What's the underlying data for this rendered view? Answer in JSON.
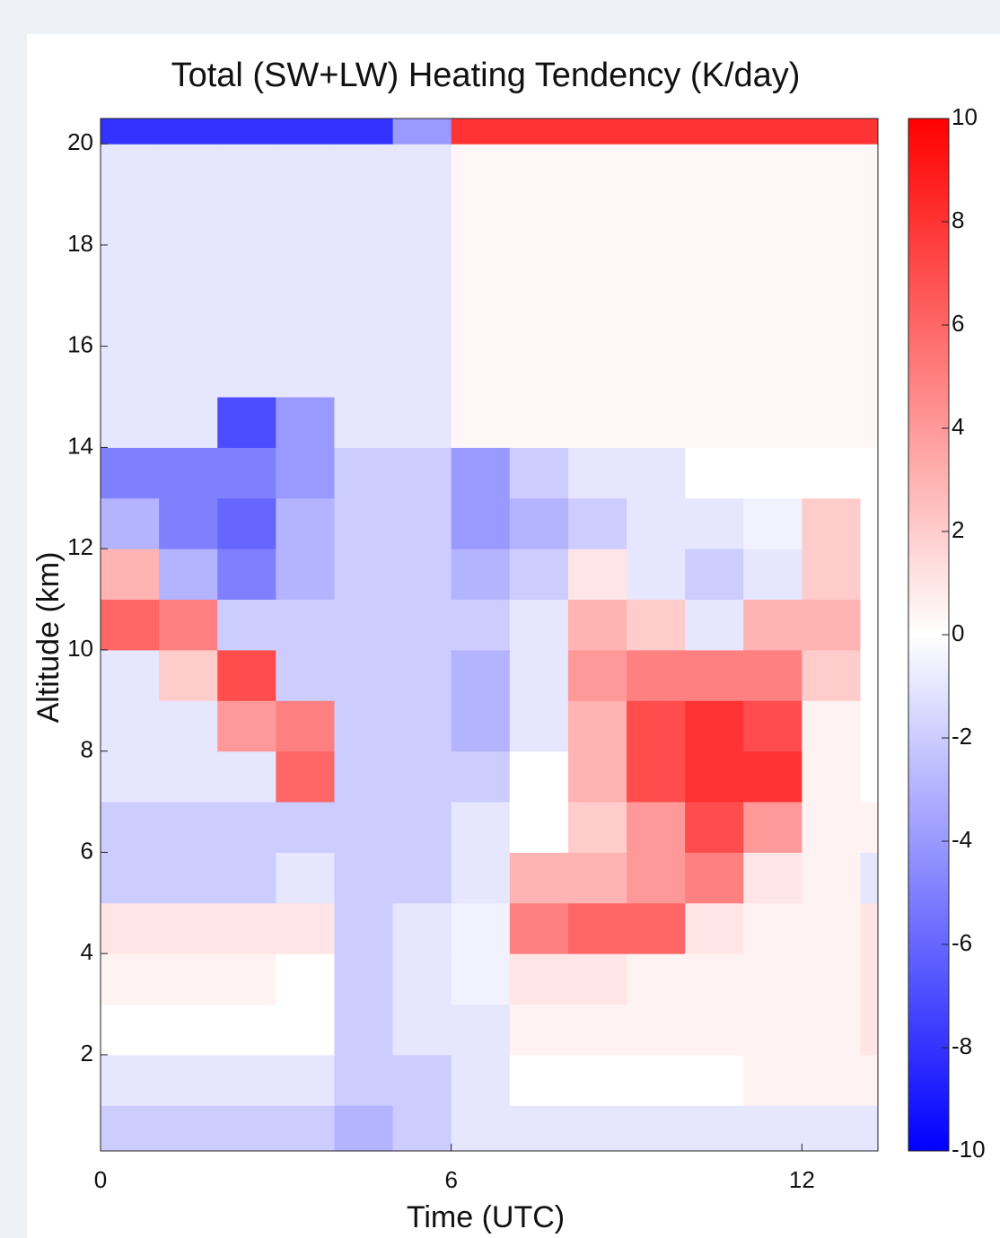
{
  "chart_data": {
    "type": "heatmap",
    "title": "Total (SW+LW) Heating Tendency (K/day)",
    "x_label": "Time (UTC)",
    "y_label": "Altitude (km)",
    "x": [
      0,
      1,
      2,
      3,
      4,
      5,
      6,
      7,
      8,
      9,
      10,
      11,
      12,
      13,
      13.3
    ],
    "y": [
      0.1,
      1,
      2,
      3,
      4,
      5,
      6,
      7,
      8,
      9,
      10,
      11,
      12,
      13,
      14,
      15,
      16,
      17,
      18,
      19,
      20,
      20.5
    ],
    "z": [
      [
        -2,
        -2,
        -2,
        -2,
        -3,
        -2,
        -1,
        -1,
        -1,
        -1,
        -1,
        -1,
        -1,
        -1
      ],
      [
        -1,
        -1,
        -1,
        -1,
        -2,
        -2,
        -1,
        0,
        0,
        0,
        0,
        0.5,
        0.5,
        0.5
      ],
      [
        0,
        0,
        0,
        0,
        -2,
        -1,
        -1,
        0.5,
        0.5,
        0.5,
        0.5,
        0.5,
        0.5,
        1
      ],
      [
        0.5,
        0.5,
        0.5,
        0,
        -2,
        -1,
        -0.5,
        1,
        1,
        0.5,
        0.5,
        0.5,
        0.5,
        1
      ],
      [
        1,
        1,
        1,
        1,
        -2,
        -1,
        -0.5,
        5,
        6,
        6,
        1,
        0.5,
        0.5,
        1
      ],
      [
        -2,
        -2,
        -2,
        -1,
        -2,
        -2,
        -1,
        3,
        3,
        4,
        5,
        1,
        0.5,
        -1
      ],
      [
        -2,
        -2,
        -2,
        -2,
        -2,
        -2,
        -1,
        0,
        2,
        4,
        7,
        4,
        0.5,
        0.5
      ],
      [
        -1,
        -1,
        -1,
        6,
        -2,
        -2,
        -2,
        0,
        3,
        7,
        8,
        8,
        0.5,
        0
      ],
      [
        -1,
        -1,
        4,
        5,
        -2,
        -2,
        -3,
        -1,
        3,
        7,
        8,
        7,
        0.5,
        0
      ],
      [
        -1,
        2,
        7,
        -2,
        -2,
        -2,
        -3,
        -1,
        4,
        5,
        5,
        5,
        2,
        0
      ],
      [
        6,
        5,
        -2,
        -2,
        -2,
        -2,
        -2,
        -1,
        3,
        2,
        -1,
        3,
        3,
        0
      ],
      [
        3,
        -3,
        -5,
        -3,
        -2,
        -2,
        -3,
        -2,
        1,
        -1,
        -2,
        -1,
        2,
        0
      ],
      [
        -3,
        -5,
        -6,
        -3,
        -2,
        -2,
        -4,
        -3,
        -2,
        -1,
        -1,
        -0.5,
        2,
        0
      ],
      [
        -5,
        -5,
        -5,
        -4,
        -2,
        -2,
        -4,
        -2,
        -1,
        -1,
        0,
        0,
        0,
        0
      ],
      [
        -1,
        -1,
        -7,
        -4,
        -1,
        -1,
        0.3,
        0.3,
        0.3,
        0.3,
        0.3,
        0.3,
        0.3,
        0.3
      ],
      [
        -1,
        -1,
        -1,
        -1,
        -1,
        -1,
        0.3,
        0.3,
        0.3,
        0.3,
        0.3,
        0.3,
        0.3,
        0.3
      ],
      [
        -1,
        -1,
        -1,
        -1,
        -1,
        -1,
        0.3,
        0.3,
        0.3,
        0.3,
        0.3,
        0.3,
        0.3,
        0.3
      ],
      [
        -1,
        -1,
        -1,
        -1,
        -1,
        -1,
        0.3,
        0.3,
        0.3,
        0.3,
        0.3,
        0.3,
        0.3,
        0.3
      ],
      [
        -1,
        -1,
        -1,
        -1,
        -1,
        -1,
        0.3,
        0.3,
        0.3,
        0.3,
        0.3,
        0.3,
        0.3,
        0.3
      ],
      [
        -1,
        -1,
        -1,
        -1,
        -1,
        -1,
        0.3,
        0.3,
        0.3,
        0.3,
        0.3,
        0.3,
        0.3,
        0.3
      ],
      [
        -8,
        -8,
        -8,
        -8,
        -8,
        -4,
        8,
        8,
        8,
        8,
        8,
        8,
        8,
        8
      ]
    ],
    "xlim": [
      0,
      13.3
    ],
    "xticks": [
      0,
      6,
      12
    ],
    "ylim": [
      0.1,
      20.5
    ],
    "yticks": [
      2,
      4,
      6,
      8,
      10,
      12,
      14,
      16,
      18,
      20
    ],
    "clim": [
      -10,
      10
    ],
    "cticks": [
      -10,
      -8,
      -6,
      -4,
      -2,
      0,
      2,
      4,
      6,
      8,
      10
    ],
    "colormap": {
      "low": "#0000ff",
      "mid": "#ffffff",
      "high": "#ff0000"
    }
  }
}
